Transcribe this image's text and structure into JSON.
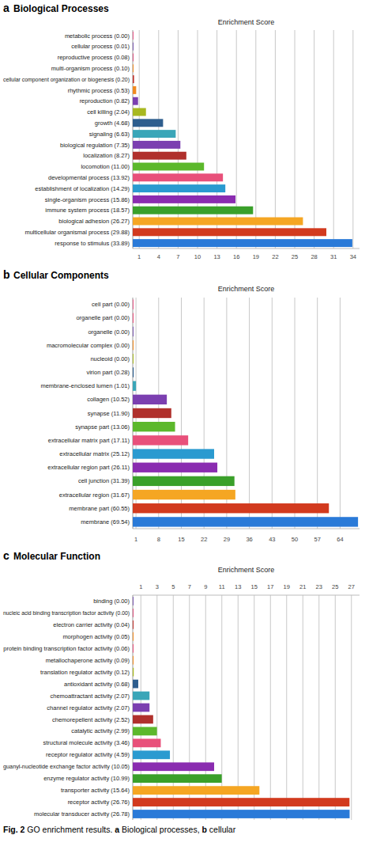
{
  "chart_data": [
    {
      "type": "bar",
      "orientation": "horizontal",
      "panel_label": "a",
      "title": "Biological Processes",
      "subtitle": "Enrichment Score",
      "categories": [
        "metabolic process (0.00)",
        "cellular process (0.01)",
        "reproductive process (0.08)",
        "multi-organism process (0.10)",
        "cellular component organization or biogenesis (0.20)",
        "rhythmic process (0.53)",
        "reproduction (0.82)",
        "cell killing (2.04)",
        "growth (4.68)",
        "signaling (6.63)",
        "biological regulation (7.35)",
        "localization (8.27)",
        "locomotion (11.00)",
        "developmental process (13.92)",
        "establishment of localization (14.29)",
        "single-organism process (15.86)",
        "immune system process (18.57)",
        "biological adhesion (26.27)",
        "multicellular organismal process (29.88)",
        "response to stimulus (33.89)"
      ],
      "values": [
        0.0,
        0.01,
        0.08,
        0.1,
        0.2,
        0.53,
        0.82,
        2.04,
        4.68,
        6.63,
        7.35,
        8.27,
        11.0,
        13.92,
        14.29,
        15.86,
        18.57,
        26.27,
        29.88,
        33.89
      ],
      "colors": [
        "#e85a8a",
        "#7b5ab0",
        "#d9507a",
        "#f08a20",
        "#c0302a",
        "#f08a20",
        "#7b3fb0",
        "#a8b820",
        "#2e5e8e",
        "#3aa6b8",
        "#7b3fb0",
        "#b0302c",
        "#5cb82c",
        "#e8507a",
        "#2a9ad0",
        "#8a2cb0",
        "#3aa02a",
        "#f5a623",
        "#d23a1e",
        "#2a7ad8"
      ],
      "xlim": [
        0,
        35
      ],
      "xticks": [
        1,
        4,
        7,
        10,
        13,
        16,
        19,
        22,
        25,
        28,
        31,
        34
      ],
      "grid": true
    },
    {
      "type": "bar",
      "orientation": "horizontal",
      "panel_label": "b",
      "title": "Cellular Components",
      "subtitle": "Enrichment Score",
      "categories": [
        "cell part (0.00)",
        "organelle part (0.00)",
        "organelle (0.00)",
        "macromolecular complex (0.00)",
        "nucleoid (0.00)",
        "virion part (0.28)",
        "membrane-enclosed lumen (1.01)",
        "collagen (10.52)",
        "synapse (11.90)",
        "synapse part (13.06)",
        "extracellular matrix part (17.11)",
        "extracellular matrix (25.12)",
        "extracellular region part (26.11)",
        "cell junction (31.39)",
        "extracellular region (31.67)",
        "membrane part (60.55)",
        "membrane (69.54)"
      ],
      "values": [
        0.0,
        0.0,
        0.0,
        0.0,
        0.0,
        0.28,
        1.01,
        10.52,
        11.9,
        13.06,
        17.11,
        25.12,
        26.11,
        31.39,
        31.67,
        60.55,
        69.54
      ],
      "colors": [
        "#e85a8a",
        "#e8507a",
        "#7b5ab0",
        "#f08a20",
        "#a8b820",
        "#2e5e8e",
        "#3aa6b8",
        "#7b3fb0",
        "#b0302c",
        "#5cb82c",
        "#e8507a",
        "#2a9ad0",
        "#8a2cb0",
        "#3aa02a",
        "#f5a623",
        "#d23a1e",
        "#2a7ad8"
      ],
      "xlim": [
        0,
        70
      ],
      "xticks": [
        1,
        8,
        15,
        22,
        29,
        36,
        43,
        50,
        57,
        64
      ],
      "grid": true
    },
    {
      "type": "bar",
      "orientation": "horizontal",
      "panel_label": "c",
      "title": "Molecular Function",
      "subtitle": "Enrichment Score",
      "categories": [
        "binding (0.00)",
        "nucleic acid binding transcription factor activity (0.00)",
        "electron carrier activity (0.04)",
        "morphogen activity (0.05)",
        "protein binding transcription factor activity (0.06)",
        "metallochaperone activity (0.09)",
        "translation regulator activity (0.12)",
        "antioxidant activity (0.68)",
        "chemoattractant activity (2.07)",
        "channel regulator activity (2.07)",
        "chemorepellent activity (2.52)",
        "catalytic activity (2.99)",
        "structural molecule activity (3.46)",
        "receptor regulator activity (4.59)",
        "guanyl-nucleotide exchange factor activity (10.05)",
        "enzyme regulator activity (10.99)",
        "transporter activity (15.64)",
        "receptor activity (26.76)",
        "molecular transducer activity (26.78)"
      ],
      "values": [
        0.0,
        0.0,
        0.04,
        0.05,
        0.06,
        0.09,
        0.12,
        0.68,
        2.07,
        2.07,
        2.52,
        2.99,
        3.46,
        4.59,
        10.05,
        10.99,
        15.64,
        26.76,
        26.78
      ],
      "colors": [
        "#7b5ab0",
        "#d9507a",
        "#c0302a",
        "#f08a20",
        "#e8507a",
        "#f08a20",
        "#a8b820",
        "#2e5e8e",
        "#3aa6b8",
        "#7b3fb0",
        "#b0302c",
        "#5cb82c",
        "#e8507a",
        "#2a9ad0",
        "#8a2cb0",
        "#3aa02a",
        "#f5a623",
        "#d23a1e",
        "#2a7ad8"
      ],
      "xlim": [
        0,
        28
      ],
      "xticks": [
        1,
        3,
        5,
        7,
        9,
        11,
        13,
        15,
        17,
        19,
        21,
        23,
        25,
        27
      ],
      "grid": true
    }
  ],
  "caption": [
    "Fig. 2",
    " GO enrichment results. ",
    "a",
    " Biological processes, ",
    "b",
    " cellular"
  ]
}
